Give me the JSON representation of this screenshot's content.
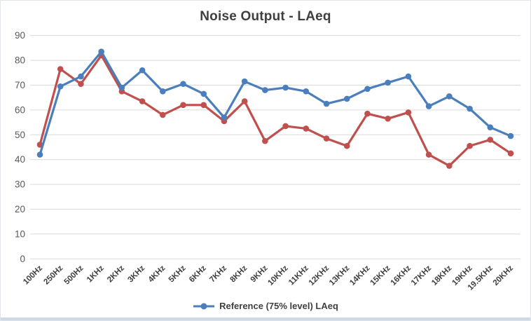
{
  "chart_data": {
    "type": "line",
    "title": "Noise Output - LAeq",
    "xlabel": "",
    "ylabel": "",
    "ylim": [
      0,
      90
    ],
    "y_ticks": [
      0,
      10,
      20,
      30,
      40,
      50,
      60,
      70,
      80,
      90
    ],
    "grid": "horizontal",
    "legend_position": "bottom-center",
    "categories": [
      "100Hz",
      "250Hz",
      "500Hz",
      "1KHz",
      "2KHz",
      "3KHz",
      "4KHz",
      "5KHz",
      "6KHz",
      "7KHz",
      "8KHz",
      "9KHz",
      "10KHz",
      "11KHz",
      "12KHz",
      "13KHz",
      "14KHz",
      "15KHz",
      "16KHz",
      "17KHz",
      "18KHz",
      "19KHz",
      "19.5KHz",
      "20KHz"
    ],
    "series": [
      {
        "name": "Reference (75% level) LAeq",
        "color": "#4A7EBD",
        "marker": "circle",
        "in_legend": true,
        "values": [
          42,
          69.5,
          73.5,
          83.5,
          69,
          76,
          67.5,
          70.5,
          66.5,
          57,
          71.5,
          68,
          69,
          67.5,
          62.5,
          64.5,
          68.5,
          71,
          73.5,
          61.5,
          65.5,
          60.5,
          53,
          49.5
        ]
      },
      {
        "name": "",
        "color": "#C0504D",
        "marker": "circle",
        "in_legend": false,
        "values": [
          46,
          76.5,
          70.5,
          82,
          67.5,
          63.5,
          58,
          62,
          62,
          55.5,
          63.5,
          47.5,
          53.5,
          52.5,
          48.5,
          45.5,
          58.5,
          56.5,
          59,
          42,
          37.5,
          45.5,
          48,
          42.5
        ]
      }
    ],
    "colors": {
      "gridline": "#d9d9d9",
      "y_tick_text": "#595959",
      "x_tick_text": "#404040",
      "title_text": "#3f3f3f",
      "legend_text": "#404040"
    }
  }
}
